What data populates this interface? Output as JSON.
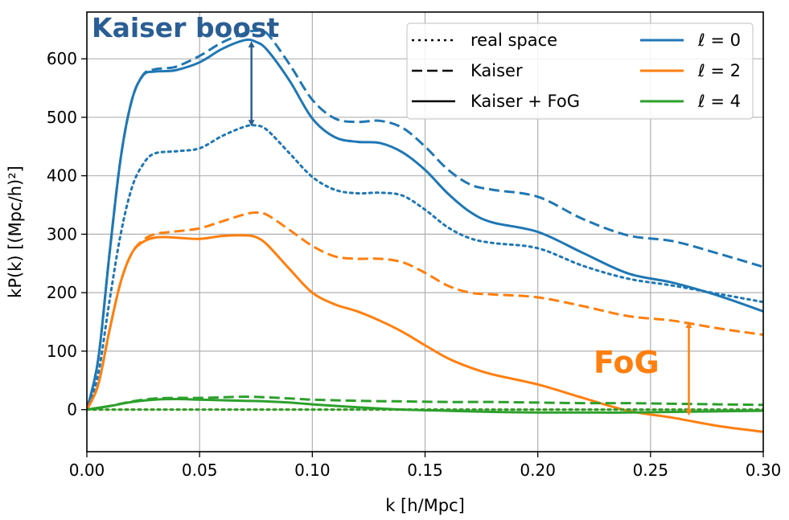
{
  "chart_data": {
    "type": "line",
    "title": "",
    "xlabel": "k [h/Mpc]",
    "ylabel": "kP(k) [(Mpc/h)²]",
    "xlim": [
      0.0,
      0.3
    ],
    "ylim": [
      -72,
      680
    ],
    "grid": true,
    "legend_position": "top-right",
    "xticks": [
      0.0,
      0.05,
      0.1,
      0.15,
      0.2,
      0.25,
      0.3
    ],
    "xtick_labels": [
      "0.00",
      "0.05",
      "0.10",
      "0.15",
      "0.20",
      "0.25",
      "0.30"
    ],
    "yticks": [
      0,
      100,
      200,
      300,
      400,
      500,
      600
    ],
    "ytick_labels": [
      "0",
      "100",
      "200",
      "300",
      "400",
      "500",
      "600"
    ],
    "colors": {
      "l0": "#1f77b4",
      "l2": "#ff7f0e",
      "l4": "#2ca02c"
    },
    "legend": {
      "styles": [
        {
          "label": "real space",
          "dash": "dotted"
        },
        {
          "label": "Kaiser",
          "dash": "dashed"
        },
        {
          "label": "Kaiser + FoG",
          "dash": "solid"
        }
      ],
      "multipoles": [
        {
          "label": "ℓ = 0",
          "color": "#1f77b4"
        },
        {
          "label": "ℓ = 2",
          "color": "#ff7f0e"
        },
        {
          "label": "ℓ = 4",
          "color": "#2ca02c"
        }
      ]
    },
    "series": [
      {
        "name": "ℓ=0 real space",
        "color": "#1f77b4",
        "dash": "dotted",
        "x": [
          0.0,
          0.005,
          0.01,
          0.015,
          0.02,
          0.025,
          0.03,
          0.04,
          0.05,
          0.06,
          0.07,
          0.075,
          0.08,
          0.09,
          0.1,
          0.11,
          0.12,
          0.13,
          0.14,
          0.15,
          0.16,
          0.17,
          0.18,
          0.2,
          0.22,
          0.24,
          0.26,
          0.28,
          0.3
        ],
        "values": [
          0,
          60,
          185,
          300,
          380,
          420,
          438,
          442,
          447,
          468,
          484,
          486,
          478,
          438,
          398,
          376,
          370,
          371,
          366,
          342,
          312,
          293,
          285,
          276,
          246,
          224,
          212,
          198,
          184
        ]
      },
      {
        "name": "ℓ=0 Kaiser",
        "color": "#1f77b4",
        "dash": "dashed",
        "x": [
          0.0,
          0.005,
          0.01,
          0.015,
          0.02,
          0.025,
          0.03,
          0.035,
          0.04,
          0.05,
          0.06,
          0.07,
          0.075,
          0.08,
          0.09,
          0.1,
          0.11,
          0.12,
          0.13,
          0.14,
          0.15,
          0.16,
          0.17,
          0.18,
          0.2,
          0.22,
          0.24,
          0.26,
          0.28,
          0.3
        ],
        "values": [
          0,
          85,
          265,
          430,
          530,
          573,
          582,
          584,
          587,
          605,
          628,
          644,
          648,
          643,
          590,
          530,
          498,
          492,
          494,
          482,
          450,
          411,
          385,
          376,
          364,
          326,
          298,
          288,
          267,
          244
        ]
      },
      {
        "name": "ℓ=0 Kaiser + FoG",
        "color": "#1f77b4",
        "dash": "solid",
        "x": [
          0.0,
          0.005,
          0.01,
          0.015,
          0.02,
          0.025,
          0.03,
          0.035,
          0.04,
          0.05,
          0.06,
          0.07,
          0.075,
          0.08,
          0.09,
          0.1,
          0.11,
          0.12,
          0.13,
          0.14,
          0.15,
          0.16,
          0.17,
          0.18,
          0.2,
          0.22,
          0.24,
          0.26,
          0.28,
          0.3
        ],
        "values": [
          0,
          85,
          265,
          430,
          530,
          572,
          578,
          579,
          581,
          594,
          617,
          632,
          629,
          615,
          562,
          498,
          466,
          458,
          456,
          440,
          410,
          370,
          338,
          320,
          304,
          268,
          233,
          217,
          195,
          168
        ]
      },
      {
        "name": "ℓ=2 real space",
        "color": "#ff7f0e",
        "dash": "dotted",
        "x": [
          0.0,
          0.3
        ],
        "values": [
          0,
          0
        ]
      },
      {
        "name": "ℓ=2 Kaiser",
        "color": "#ff7f0e",
        "dash": "dashed",
        "x": [
          0.0,
          0.005,
          0.01,
          0.015,
          0.02,
          0.025,
          0.03,
          0.035,
          0.04,
          0.05,
          0.06,
          0.07,
          0.075,
          0.08,
          0.09,
          0.1,
          0.11,
          0.12,
          0.13,
          0.14,
          0.15,
          0.16,
          0.17,
          0.18,
          0.2,
          0.22,
          0.24,
          0.26,
          0.28,
          0.3
        ],
        "values": [
          0,
          42,
          135,
          218,
          268,
          290,
          300,
          303,
          305,
          310,
          322,
          334,
          337,
          333,
          307,
          280,
          262,
          258,
          258,
          252,
          234,
          212,
          200,
          197,
          192,
          177,
          160,
          152,
          139,
          128
        ]
      },
      {
        "name": "ℓ=2 Kaiser + FoG",
        "color": "#ff7f0e",
        "dash": "solid",
        "x": [
          0.0,
          0.005,
          0.01,
          0.015,
          0.02,
          0.025,
          0.03,
          0.035,
          0.04,
          0.05,
          0.06,
          0.07,
          0.075,
          0.08,
          0.09,
          0.1,
          0.11,
          0.12,
          0.13,
          0.14,
          0.15,
          0.16,
          0.17,
          0.18,
          0.2,
          0.22,
          0.24,
          0.26,
          0.28,
          0.3
        ],
        "values": [
          0,
          42,
          135,
          218,
          268,
          287,
          294,
          295,
          294,
          292,
          297,
          298,
          295,
          282,
          240,
          200,
          180,
          168,
          152,
          133,
          110,
          88,
          72,
          60,
          43,
          20,
          -2,
          -14,
          -28,
          -38
        ]
      },
      {
        "name": "ℓ=4 real space",
        "color": "#2ca02c",
        "dash": "dotted",
        "x": [
          0.0,
          0.3
        ],
        "values": [
          0,
          0
        ]
      },
      {
        "name": "ℓ=4 Kaiser",
        "color": "#2ca02c",
        "dash": "dashed",
        "x": [
          0.0,
          0.01,
          0.02,
          0.03,
          0.04,
          0.05,
          0.06,
          0.07,
          0.08,
          0.09,
          0.1,
          0.12,
          0.14,
          0.16,
          0.18,
          0.2,
          0.22,
          0.24,
          0.26,
          0.28,
          0.3
        ],
        "values": [
          0,
          6,
          14,
          19,
          20,
          20,
          21,
          22,
          21,
          19,
          17,
          15,
          14,
          13,
          13,
          12,
          11,
          11,
          10,
          9,
          8
        ]
      },
      {
        "name": "ℓ=4 Kaiser + FoG",
        "color": "#2ca02c",
        "dash": "solid",
        "x": [
          0.0,
          0.01,
          0.02,
          0.03,
          0.04,
          0.05,
          0.06,
          0.07,
          0.08,
          0.09,
          0.1,
          0.12,
          0.14,
          0.16,
          0.18,
          0.2,
          0.22,
          0.24,
          0.26,
          0.28,
          0.3
        ],
        "values": [
          0,
          6,
          13,
          17,
          18,
          17,
          16,
          15,
          14,
          12,
          9,
          4,
          0,
          -2,
          -4,
          -5,
          -5,
          -5,
          -4,
          -3,
          -2
        ]
      }
    ],
    "annotations": [
      {
        "text": "Kaiser boost",
        "color": "#2a5e94",
        "arrow_x": 0.073,
        "arrow_from": 625,
        "arrow_to": 490
      },
      {
        "text": "FoG",
        "color": "#ff7f0e",
        "arrow_x": 0.267,
        "arrow_from": 145,
        "arrow_to": -5
      }
    ]
  }
}
